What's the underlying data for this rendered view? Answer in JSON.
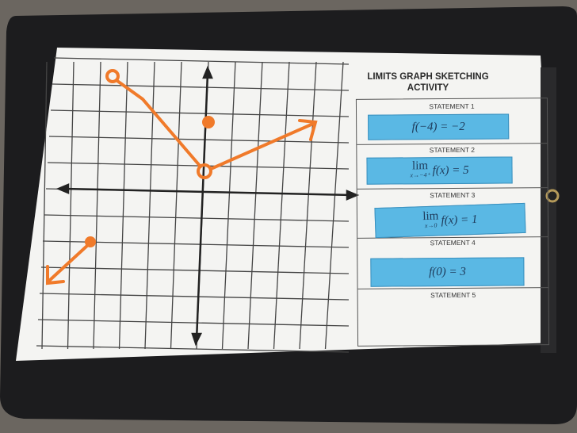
{
  "worksheet": {
    "title": "LIMITS GRAPH SKETCHING ACTIVITY",
    "statements": [
      {
        "label": "STATEMENT 1",
        "card": "f(−4) = −2"
      },
      {
        "label": "STATEMENT 2",
        "lim": "lim",
        "sub": "x→−4⁺",
        "card": "f(x) = 5"
      },
      {
        "label": "STATEMENT 3",
        "lim": "lim",
        "sub": "x→0",
        "card": "f(x) = 1"
      },
      {
        "label": "STATEMENT 4",
        "card": "f(0) = 3"
      },
      {
        "label": "STATEMENT 5",
        "card": ""
      }
    ]
  },
  "colors": {
    "sketch": "#f07a2a",
    "card": "#5ab8e4",
    "clipboard": "#1c1c1e",
    "paper": "#f4f4f2"
  }
}
